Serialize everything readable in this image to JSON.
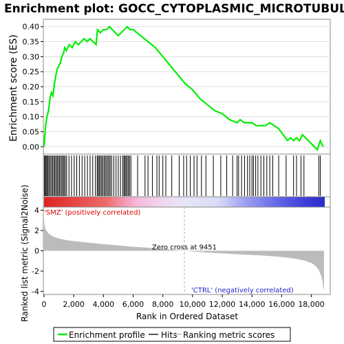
{
  "title": "Enrichment plot: GOCC_CYTOPLASMIC_MICROTUBULE",
  "colors": {
    "es_line": "#00ee00",
    "hit": "#000000",
    "metric_fill": "#bbbbbb",
    "pos_label": "#dd0000",
    "neg_label": "#2222cc",
    "zero_line": "#aaaaaa"
  },
  "chart_data": [
    {
      "type": "line",
      "name": "enrichment-profile",
      "ylabel": "Enrichment score (ES)",
      "xlim": [
        0,
        18900
      ],
      "ylim": [
        -0.02,
        0.42
      ],
      "yticks": [
        "0.00",
        "0.05",
        "0.10",
        "0.15",
        "0.20",
        "0.25",
        "0.30",
        "0.35",
        "0.40"
      ],
      "ytick_values": [
        0.0,
        0.05,
        0.1,
        0.15,
        0.2,
        0.25,
        0.3,
        0.35,
        0.4
      ],
      "grid": true,
      "series": [
        {
          "values_x": [
            0,
            100,
            200,
            300,
            400,
            500,
            600,
            700,
            800,
            900,
            1000,
            1100,
            1200,
            1300,
            1400,
            1500,
            1700,
            1900,
            2100,
            2300,
            2500,
            2700,
            2900,
            3100,
            3300,
            3500,
            3600,
            3800,
            4000,
            4200,
            4400,
            4600,
            4800,
            5000,
            5200,
            5400,
            5600,
            5800,
            6000,
            6500,
            7000,
            7500,
            8000,
            8500,
            9000,
            9500,
            10000,
            10500,
            11000,
            11500,
            12000,
            12500,
            13000,
            13200,
            13500,
            13800,
            14000,
            14300,
            14600,
            14900,
            15200,
            15500,
            15800,
            16100,
            16400,
            16600,
            16800,
            17000,
            17200,
            17400,
            17600,
            17800,
            18000,
            18200,
            18400,
            18600,
            18800
          ],
          "values_y": [
            0.0,
            0.07,
            0.1,
            0.12,
            0.16,
            0.18,
            0.17,
            0.21,
            0.24,
            0.26,
            0.27,
            0.28,
            0.3,
            0.31,
            0.33,
            0.32,
            0.34,
            0.33,
            0.35,
            0.34,
            0.35,
            0.36,
            0.35,
            0.36,
            0.35,
            0.34,
            0.39,
            0.38,
            0.39,
            0.39,
            0.4,
            0.39,
            0.38,
            0.37,
            0.38,
            0.39,
            0.4,
            0.39,
            0.39,
            0.37,
            0.35,
            0.33,
            0.3,
            0.27,
            0.24,
            0.21,
            0.19,
            0.16,
            0.14,
            0.12,
            0.11,
            0.09,
            0.08,
            0.09,
            0.08,
            0.08,
            0.08,
            0.07,
            0.07,
            0.07,
            0.08,
            0.07,
            0.06,
            0.04,
            0.02,
            0.03,
            0.02,
            0.03,
            0.02,
            0.04,
            0.03,
            0.02,
            0.01,
            0.0,
            -0.01,
            0.02,
            0.0
          ]
        }
      ]
    },
    {
      "type": "scatter",
      "name": "hits",
      "xlim": [
        0,
        18900
      ],
      "x": [
        30,
        80,
        140,
        200,
        270,
        340,
        420,
        500,
        580,
        660,
        730,
        810,
        890,
        960,
        1040,
        1120,
        1200,
        1280,
        1350,
        1430,
        1520,
        1680,
        1850,
        2030,
        2200,
        2380,
        2560,
        2740,
        2920,
        3100,
        3280,
        3460,
        3580,
        3650,
        3720,
        3800,
        3880,
        3960,
        4050,
        4130,
        4210,
        4300,
        4380,
        4460,
        4560,
        4700,
        4850,
        5000,
        5150,
        5300,
        5380,
        5450,
        5520,
        5600,
        5680,
        5760,
        5850,
        6300,
        6800,
        7000,
        7300,
        7600,
        7750,
        8000,
        8200,
        8600,
        9100,
        9400,
        9600,
        9850,
        10100,
        10300,
        10600,
        10900,
        11400,
        11900,
        12300,
        12700,
        13000,
        13100,
        13300,
        13500,
        13700,
        13850,
        14000,
        14100,
        14250,
        14400,
        14600,
        14800,
        15000,
        15200,
        15400,
        15800,
        16300,
        16800,
        17000,
        17300,
        17500,
        18500,
        18600
      ]
    },
    {
      "type": "area",
      "name": "ranked-list-metric",
      "xlabel": "Rank in Ordered Dataset",
      "ylabel": "Ranked list metric (Signal2Noise)",
      "xlim": [
        0,
        18900
      ],
      "ylim": [
        -4.3,
        4.3
      ],
      "xticks": [
        "0",
        "2,000",
        "4,000",
        "6,000",
        "8,000",
        "10,000",
        "12,000",
        "14,000",
        "16,000",
        "18,000"
      ],
      "xtick_values": [
        0,
        2000,
        4000,
        6000,
        8000,
        10000,
        12000,
        14000,
        16000,
        18000
      ],
      "yticks": [
        "4",
        "2",
        "0",
        "-2",
        "-4"
      ],
      "ytick_values": [
        4,
        2,
        0,
        -2,
        -4
      ],
      "series": [
        {
          "values_x": [
            0,
            30,
            100,
            300,
            600,
            1000,
            1500,
            2000,
            3000,
            4000,
            5000,
            6000,
            7000,
            8000,
            9451,
            10500,
            11500,
            12500,
            13500,
            14500,
            15500,
            16500,
            17000,
            17500,
            18000,
            18300,
            18500,
            18650,
            18750,
            18800,
            18850
          ],
          "values_y": [
            3.2,
            2.6,
            2.1,
            1.7,
            1.4,
            1.2,
            1.05,
            0.95,
            0.8,
            0.65,
            0.52,
            0.4,
            0.3,
            0.18,
            0.0,
            -0.12,
            -0.22,
            -0.3,
            -0.38,
            -0.45,
            -0.55,
            -0.7,
            -0.8,
            -0.95,
            -1.2,
            -1.5,
            -1.9,
            -2.4,
            -3.0,
            -3.6,
            -3.9
          ]
        }
      ],
      "zero_cross_label": "Zero cross at 9451",
      "zero_cross_x": 9451,
      "pos_label": "'SMZ' (positively correlated)",
      "neg_label": "'CTRL' (negatively correlated)"
    }
  ],
  "legend": {
    "items": [
      "Enrichment profile",
      "Hits",
      "Ranking metric scores"
    ]
  }
}
